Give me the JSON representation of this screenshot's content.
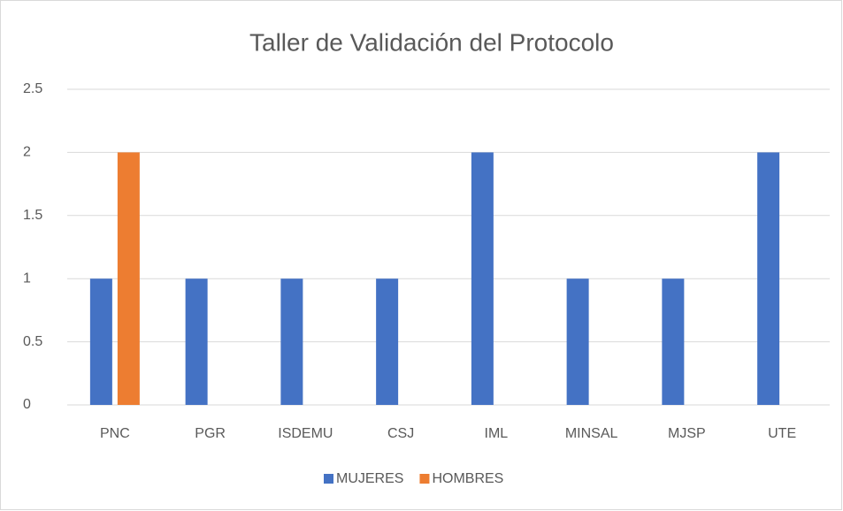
{
  "chart_data": {
    "type": "bar",
    "title": "Taller de Validación del Protocolo",
    "categories": [
      "PNC",
      "PGR",
      "ISDEMU",
      "CSJ",
      "IML",
      "MINSAL",
      "MJSP",
      "UTE"
    ],
    "series": [
      {
        "name": "MUJERES",
        "color": "#4472c4",
        "values": [
          1,
          1,
          1,
          1,
          2,
          1,
          1,
          2
        ]
      },
      {
        "name": "HOMBRES",
        "color": "#ed7d31",
        "values": [
          2,
          0,
          0,
          0,
          0,
          0,
          0,
          0
        ]
      }
    ],
    "ylim": [
      0,
      2.5
    ],
    "yticks": [
      0,
      0.5,
      1,
      1.5,
      2,
      2.5
    ],
    "grid": true,
    "legend": "bottom"
  }
}
